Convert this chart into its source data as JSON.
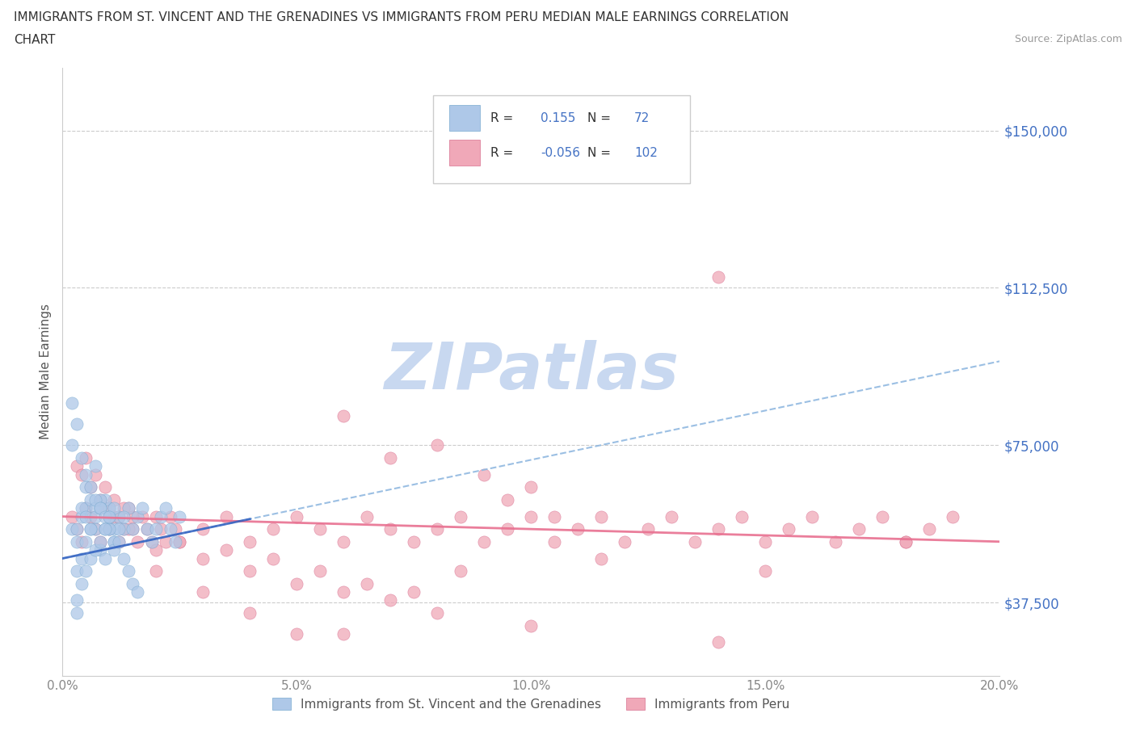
{
  "title_line1": "IMMIGRANTS FROM ST. VINCENT AND THE GRENADINES VS IMMIGRANTS FROM PERU MEDIAN MALE EARNINGS CORRELATION",
  "title_line2": "CHART",
  "source": "Source: ZipAtlas.com",
  "ylabel": "Median Male Earnings",
  "xlim": [
    0.0,
    0.2
  ],
  "ylim": [
    20000,
    165000
  ],
  "yticks": [
    37500,
    75000,
    112500,
    150000
  ],
  "ytick_labels": [
    "$37,500",
    "$75,000",
    "$112,500",
    "$150,000"
  ],
  "xticks": [
    0.0,
    0.05,
    0.1,
    0.15,
    0.2
  ],
  "xtick_labels": [
    "0.0%",
    "5.0%",
    "10.0%",
    "15.0%",
    "20.0%"
  ],
  "sv_color": "#aec8e8",
  "sv_edge": "#7aaad0",
  "peru_color": "#f0a8b8",
  "peru_edge": "#d87090",
  "sv_R": 0.155,
  "sv_N": 72,
  "peru_R": -0.056,
  "peru_N": 102,
  "blue_trend_color": "#90b8e0",
  "pink_trend_color": "#e87090",
  "blue_solid_color": "#3060c0",
  "watermark": "ZIPatlas",
  "watermark_color": "#c8d8f0",
  "legend_label_sv": "Immigrants from St. Vincent and the Grenadines",
  "legend_label_peru": "Immigrants from Peru",
  "r_text_color": "#4472c4",
  "tick_color": "#888888",
  "right_tick_color": "#4472c4",
  "sv_x": [
    0.002,
    0.003,
    0.004,
    0.005,
    0.006,
    0.007,
    0.008,
    0.009,
    0.01,
    0.01,
    0.011,
    0.012,
    0.013,
    0.014,
    0.015,
    0.016,
    0.017,
    0.018,
    0.019,
    0.02,
    0.021,
    0.022,
    0.023,
    0.024,
    0.025,
    0.005,
    0.007,
    0.009,
    0.011,
    0.013,
    0.003,
    0.004,
    0.005,
    0.006,
    0.007,
    0.008,
    0.009,
    0.01,
    0.011,
    0.012,
    0.003,
    0.004,
    0.005,
    0.006,
    0.007,
    0.008,
    0.002,
    0.003,
    0.004,
    0.005,
    0.006,
    0.007,
    0.008,
    0.009,
    0.01,
    0.011,
    0.003,
    0.004,
    0.005,
    0.006,
    0.007,
    0.008,
    0.009,
    0.01,
    0.011,
    0.012,
    0.013,
    0.014,
    0.015,
    0.016,
    0.002,
    0.003
  ],
  "sv_y": [
    55000,
    52000,
    58000,
    60000,
    62000,
    55000,
    50000,
    48000,
    55000,
    60000,
    52000,
    58000,
    55000,
    60000,
    55000,
    58000,
    60000,
    55000,
    52000,
    55000,
    58000,
    60000,
    55000,
    52000,
    58000,
    65000,
    70000,
    62000,
    55000,
    58000,
    55000,
    60000,
    58000,
    55000,
    60000,
    62000,
    55000,
    58000,
    60000,
    55000,
    45000,
    48000,
    52000,
    55000,
    58000,
    60000,
    75000,
    80000,
    72000,
    68000,
    65000,
    62000,
    60000,
    58000,
    55000,
    52000,
    38000,
    42000,
    45000,
    48000,
    50000,
    52000,
    55000,
    58000,
    50000,
    52000,
    48000,
    45000,
    42000,
    40000,
    85000,
    35000
  ],
  "peru_x": [
    0.002,
    0.003,
    0.004,
    0.005,
    0.006,
    0.007,
    0.008,
    0.009,
    0.01,
    0.011,
    0.012,
    0.013,
    0.014,
    0.015,
    0.016,
    0.017,
    0.018,
    0.019,
    0.02,
    0.021,
    0.022,
    0.023,
    0.024,
    0.025,
    0.03,
    0.035,
    0.04,
    0.045,
    0.05,
    0.055,
    0.06,
    0.065,
    0.07,
    0.075,
    0.08,
    0.085,
    0.09,
    0.095,
    0.1,
    0.105,
    0.11,
    0.115,
    0.12,
    0.125,
    0.13,
    0.135,
    0.14,
    0.145,
    0.15,
    0.155,
    0.16,
    0.165,
    0.17,
    0.175,
    0.18,
    0.185,
    0.19,
    0.003,
    0.004,
    0.005,
    0.006,
    0.007,
    0.008,
    0.009,
    0.01,
    0.011,
    0.012,
    0.013,
    0.014,
    0.015,
    0.02,
    0.025,
    0.03,
    0.035,
    0.04,
    0.045,
    0.05,
    0.055,
    0.06,
    0.065,
    0.07,
    0.075,
    0.08,
    0.14,
    0.08,
    0.09,
    0.1,
    0.06,
    0.07,
    0.095,
    0.105,
    0.115,
    0.085,
    0.05,
    0.04,
    0.03,
    0.02,
    0.06,
    0.1,
    0.14,
    0.18,
    0.15
  ],
  "peru_y": [
    58000,
    55000,
    52000,
    60000,
    58000,
    55000,
    52000,
    60000,
    55000,
    58000,
    52000,
    55000,
    60000,
    55000,
    52000,
    58000,
    55000,
    52000,
    58000,
    55000,
    52000,
    58000,
    55000,
    52000,
    55000,
    58000,
    52000,
    55000,
    58000,
    55000,
    52000,
    58000,
    55000,
    52000,
    55000,
    58000,
    52000,
    55000,
    58000,
    52000,
    55000,
    58000,
    52000,
    55000,
    58000,
    52000,
    55000,
    58000,
    52000,
    55000,
    58000,
    52000,
    55000,
    58000,
    52000,
    55000,
    58000,
    70000,
    68000,
    72000,
    65000,
    68000,
    62000,
    65000,
    60000,
    62000,
    58000,
    60000,
    55000,
    58000,
    50000,
    52000,
    48000,
    50000,
    45000,
    48000,
    42000,
    45000,
    40000,
    42000,
    38000,
    40000,
    35000,
    115000,
    75000,
    68000,
    65000,
    82000,
    72000,
    62000,
    58000,
    48000,
    45000,
    30000,
    35000,
    40000,
    45000,
    30000,
    32000,
    28000,
    52000,
    45000
  ]
}
